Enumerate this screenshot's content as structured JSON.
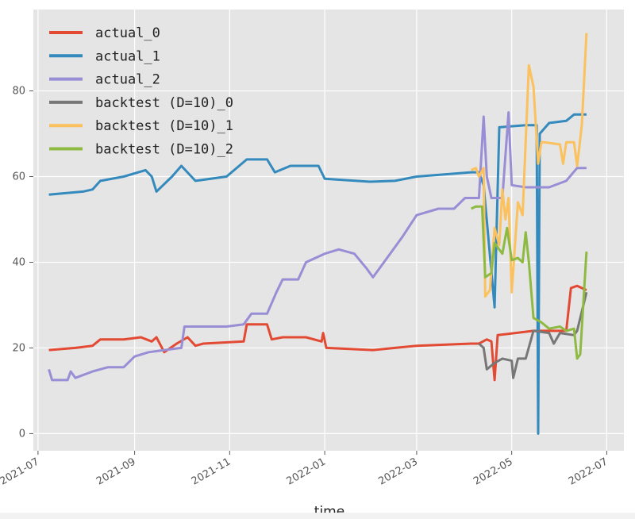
{
  "chart_data": {
    "type": "line",
    "title": "",
    "xlabel": "time",
    "ylabel": "",
    "x_range": [
      "2021-06-28",
      "2022-07-12"
    ],
    "ylim": [
      -4,
      99
    ],
    "yticks": [
      0,
      20,
      40,
      60,
      80
    ],
    "xticks": [
      {
        "label": "2021-07",
        "date": "2021-07-01"
      },
      {
        "label": "2021-09",
        "date": "2021-09-01"
      },
      {
        "label": "2021-11",
        "date": "2021-11-01"
      },
      {
        "label": "2022-01",
        "date": "2022-01-01"
      },
      {
        "label": "2022-03",
        "date": "2022-03-01"
      },
      {
        "label": "2022-05",
        "date": "2022-05-01"
      },
      {
        "label": "2022-07",
        "date": "2022-07-01"
      }
    ],
    "grid": true,
    "legend_position": "top-left",
    "series": [
      {
        "name": "actual_0",
        "color": "#E24A33",
        "points": [
          [
            "2021-07-08",
            19.5
          ],
          [
            "2021-07-25",
            20
          ],
          [
            "2021-08-05",
            20.5
          ],
          [
            "2021-08-10",
            22
          ],
          [
            "2021-08-25",
            22
          ],
          [
            "2021-09-05",
            22.5
          ],
          [
            "2021-09-12",
            21.5
          ],
          [
            "2021-09-15",
            22.5
          ],
          [
            "2021-09-20",
            19
          ],
          [
            "2021-09-28",
            21
          ],
          [
            "2021-10-05",
            22.5
          ],
          [
            "2021-10-10",
            20.5
          ],
          [
            "2021-10-15",
            21
          ],
          [
            "2021-11-10",
            21.5
          ],
          [
            "2021-11-12",
            25.5
          ],
          [
            "2021-11-25",
            25.5
          ],
          [
            "2021-11-28",
            22
          ],
          [
            "2021-12-05",
            22.5
          ],
          [
            "2021-12-20",
            22.5
          ],
          [
            "2021-12-30",
            21.5
          ],
          [
            "2021-12-31",
            23.5
          ],
          [
            "2022-01-02",
            20
          ],
          [
            "2022-02-01",
            19.5
          ],
          [
            "2022-03-01",
            20.5
          ],
          [
            "2022-04-05",
            21
          ],
          [
            "2022-04-10",
            21
          ],
          [
            "2022-04-15",
            22
          ],
          [
            "2022-04-18",
            21.5
          ],
          [
            "2022-04-20",
            12.5
          ],
          [
            "2022-04-22",
            23
          ],
          [
            "2022-05-15",
            24
          ],
          [
            "2022-06-05",
            24
          ],
          [
            "2022-06-08",
            34
          ],
          [
            "2022-06-12",
            34.5
          ],
          [
            "2022-06-18",
            33.5
          ]
        ]
      },
      {
        "name": "actual_1",
        "color": "#348ABD",
        "points": [
          [
            "2021-07-08",
            55.8
          ],
          [
            "2021-07-30",
            56.5
          ],
          [
            "2021-08-05",
            57
          ],
          [
            "2021-08-10",
            59
          ],
          [
            "2021-08-25",
            60
          ],
          [
            "2021-09-08",
            61.5
          ],
          [
            "2021-09-12",
            60
          ],
          [
            "2021-09-15",
            56.5
          ],
          [
            "2021-09-25",
            60
          ],
          [
            "2021-10-01",
            62.5
          ],
          [
            "2021-10-10",
            59
          ],
          [
            "2021-10-30",
            60
          ],
          [
            "2021-11-12",
            64
          ],
          [
            "2021-11-25",
            64
          ],
          [
            "2021-11-30",
            61
          ],
          [
            "2021-12-10",
            62.5
          ],
          [
            "2021-12-28",
            62.5
          ],
          [
            "2022-01-01",
            59.5
          ],
          [
            "2022-01-30",
            58.8
          ],
          [
            "2022-02-15",
            59
          ],
          [
            "2022-03-01",
            60
          ],
          [
            "2022-04-05",
            61
          ],
          [
            "2022-04-10",
            61
          ],
          [
            "2022-04-13",
            58
          ],
          [
            "2022-04-20",
            29.5
          ],
          [
            "2022-04-23",
            71.5
          ],
          [
            "2022-05-10",
            72
          ],
          [
            "2022-05-17",
            72
          ],
          [
            "2022-05-18",
            0
          ],
          [
            "2022-05-19",
            70
          ],
          [
            "2022-05-25",
            72.5
          ],
          [
            "2022-06-05",
            73
          ],
          [
            "2022-06-10",
            74.5
          ],
          [
            "2022-06-18",
            74.5
          ]
        ]
      },
      {
        "name": "actual_2",
        "color": "#988ED5",
        "points": [
          [
            "2021-07-08",
            15
          ],
          [
            "2021-07-10",
            12.5
          ],
          [
            "2021-07-20",
            12.5
          ],
          [
            "2021-07-22",
            14.5
          ],
          [
            "2021-07-25",
            13
          ],
          [
            "2021-08-05",
            14.5
          ],
          [
            "2021-08-15",
            15.5
          ],
          [
            "2021-08-25",
            15.5
          ],
          [
            "2021-09-01",
            18
          ],
          [
            "2021-09-10",
            19
          ],
          [
            "2021-09-20",
            19.5
          ],
          [
            "2021-10-01",
            20
          ],
          [
            "2021-10-03",
            25
          ],
          [
            "2021-10-15",
            25
          ],
          [
            "2021-10-30",
            25
          ],
          [
            "2021-11-10",
            25.5
          ],
          [
            "2021-11-15",
            28
          ],
          [
            "2021-11-25",
            28
          ],
          [
            "2021-12-01",
            33
          ],
          [
            "2021-12-05",
            36
          ],
          [
            "2021-12-15",
            36
          ],
          [
            "2021-12-20",
            40
          ],
          [
            "2022-01-01",
            42
          ],
          [
            "2022-01-10",
            43
          ],
          [
            "2022-01-20",
            42
          ],
          [
            "2022-01-28",
            38.5
          ],
          [
            "2022-02-01",
            36.5
          ],
          [
            "2022-02-08",
            40
          ],
          [
            "2022-02-20",
            46
          ],
          [
            "2022-03-01",
            51
          ],
          [
            "2022-03-15",
            52.5
          ],
          [
            "2022-03-25",
            52.5
          ],
          [
            "2022-04-01",
            55
          ],
          [
            "2022-04-10",
            55
          ],
          [
            "2022-04-13",
            74
          ],
          [
            "2022-04-15",
            60
          ],
          [
            "2022-04-18",
            55
          ],
          [
            "2022-04-25",
            55
          ],
          [
            "2022-04-29",
            75
          ],
          [
            "2022-05-01",
            58
          ],
          [
            "2022-05-10",
            57.5
          ],
          [
            "2022-05-25",
            57.5
          ],
          [
            "2022-06-05",
            59
          ],
          [
            "2022-06-12",
            62
          ],
          [
            "2022-06-18",
            62
          ]
        ]
      },
      {
        "name": "backtest (D=10)_0",
        "color": "#777777",
        "points": [
          [
            "2022-04-10",
            21
          ],
          [
            "2022-04-13",
            20
          ],
          [
            "2022-04-15",
            15
          ],
          [
            "2022-04-20",
            16.5
          ],
          [
            "2022-04-25",
            17.5
          ],
          [
            "2022-05-01",
            17
          ],
          [
            "2022-05-02",
            13
          ],
          [
            "2022-05-05",
            17.5
          ],
          [
            "2022-05-10",
            17.5
          ],
          [
            "2022-05-15",
            24
          ],
          [
            "2022-05-25",
            23.5
          ],
          [
            "2022-05-28",
            21
          ],
          [
            "2022-06-01",
            23.5
          ],
          [
            "2022-06-10",
            23
          ],
          [
            "2022-06-12",
            24
          ],
          [
            "2022-06-18",
            33
          ]
        ]
      },
      {
        "name": "backtest (D=10)_1",
        "color": "#FBC15E",
        "points": [
          [
            "2022-04-05",
            61.5
          ],
          [
            "2022-04-08",
            62
          ],
          [
            "2022-04-10",
            60
          ],
          [
            "2022-04-13",
            62
          ],
          [
            "2022-04-14",
            32
          ],
          [
            "2022-04-17",
            33.5
          ],
          [
            "2022-04-20",
            48
          ],
          [
            "2022-04-23",
            44
          ],
          [
            "2022-04-25",
            57
          ],
          [
            "2022-04-27",
            50
          ],
          [
            "2022-04-29",
            55
          ],
          [
            "2022-05-01",
            33
          ],
          [
            "2022-05-05",
            54
          ],
          [
            "2022-05-08",
            51
          ],
          [
            "2022-05-12",
            86
          ],
          [
            "2022-05-15",
            81
          ],
          [
            "2022-05-18",
            63
          ],
          [
            "2022-05-20",
            68
          ],
          [
            "2022-05-22",
            68
          ],
          [
            "2022-06-01",
            67.5
          ],
          [
            "2022-06-03",
            63
          ],
          [
            "2022-06-05",
            68
          ],
          [
            "2022-06-10",
            68
          ],
          [
            "2022-06-12",
            62.5
          ],
          [
            "2022-06-15",
            72
          ],
          [
            "2022-06-18",
            93.5
          ]
        ]
      },
      {
        "name": "backtest (D=10)_2",
        "color": "#8EBA42",
        "points": [
          [
            "2022-04-05",
            52.5
          ],
          [
            "2022-04-08",
            53
          ],
          [
            "2022-04-12",
            53
          ],
          [
            "2022-04-14",
            36.5
          ],
          [
            "2022-04-18",
            37.5
          ],
          [
            "2022-04-20",
            44.5
          ],
          [
            "2022-04-25",
            42
          ],
          [
            "2022-04-28",
            48
          ],
          [
            "2022-05-01",
            40.5
          ],
          [
            "2022-05-05",
            41
          ],
          [
            "2022-05-08",
            40
          ],
          [
            "2022-05-10",
            47
          ],
          [
            "2022-05-12",
            40
          ],
          [
            "2022-05-15",
            27
          ],
          [
            "2022-05-20",
            26
          ],
          [
            "2022-05-25",
            24.5
          ],
          [
            "2022-06-01",
            25
          ],
          [
            "2022-06-05",
            24
          ],
          [
            "2022-06-10",
            24.5
          ],
          [
            "2022-06-12",
            17.5
          ],
          [
            "2022-06-14",
            18.5
          ],
          [
            "2022-06-18",
            42.5
          ]
        ]
      }
    ]
  }
}
